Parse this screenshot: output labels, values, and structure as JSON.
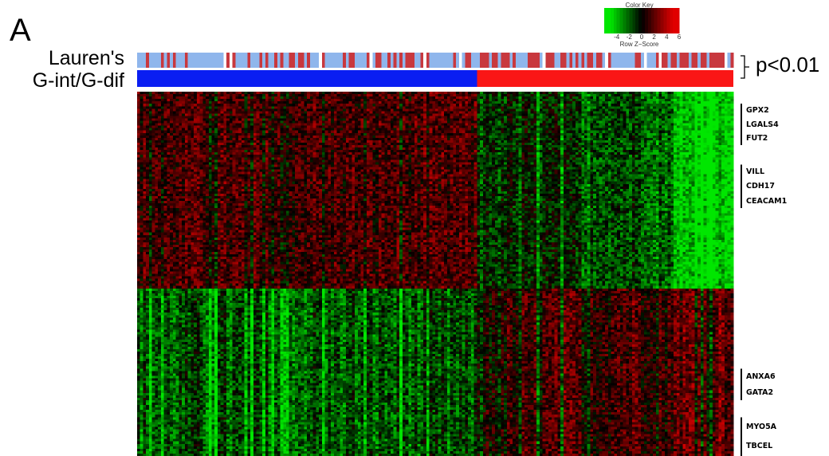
{
  "figure": {
    "panel_letter": "A",
    "row_labels": {
      "lauren": "Lauren's",
      "subtype": "G-int/G-dif"
    },
    "annotation": "p<0.01"
  },
  "colors": {
    "lauren_a": "#c8383e",
    "lauren_b": "#8fb6ec",
    "g_int": "#0a1ef2",
    "g_dif": "#fa1616",
    "heat_low": "#00e600",
    "heat_mid": "#000000",
    "heat_high": "#e00000"
  },
  "chart_data": {
    "type": "heatmap",
    "title": "",
    "color_key": {
      "title": "Color Key",
      "xlabel": "Row Z−Score",
      "ticks": [
        -4,
        -2,
        0,
        2,
        4,
        6
      ],
      "range": [
        -6,
        6
      ],
      "colors": [
        "#00e600",
        "#000000",
        "#e00000"
      ]
    },
    "columns": 200,
    "rows": 150,
    "column_annotations": [
      {
        "name": "Lauren's",
        "categories": [
          "red",
          "light blue"
        ],
        "approx_fraction_red": 0.45
      },
      {
        "name": "G-int/G-dif",
        "groups": [
          {
            "color": "blue",
            "fraction": 0.57
          },
          {
            "color": "red",
            "fraction": 0.43
          }
        ]
      }
    ],
    "gene_clusters": [
      {
        "genes": [
          "GPX2",
          "LGALS4",
          "FUT2"
        ],
        "row_range": [
          5,
          22
        ]
      },
      {
        "genes": [
          "VILL",
          "CDH17",
          "CEACAM1"
        ],
        "row_range": [
          30,
          48
        ]
      },
      {
        "genes": [
          "ANXA6",
          "GATA2"
        ],
        "row_range": [
          114,
          127
        ]
      },
      {
        "genes": [
          "MYO5A",
          "TBCEL"
        ],
        "row_range": [
          134,
          150
        ]
      }
    ],
    "significance": "p<0.01"
  }
}
